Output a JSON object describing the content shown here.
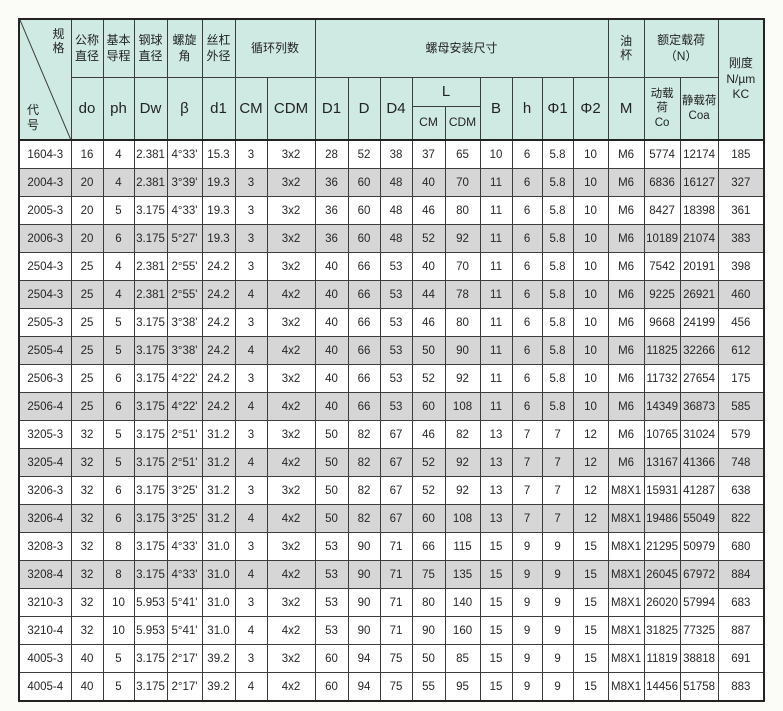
{
  "colors": {
    "header_bg": "#cfeae2",
    "shaded_row_bg": "#d6d6d6",
    "border": "#3c3c3c",
    "text": "#262626"
  },
  "header": {
    "diagonal": {
      "top": "规格",
      "bottom": "代号"
    },
    "groups": {
      "nominal_diameter": "公称\n直径",
      "basic_lead": "基本\n导程",
      "ball_diameter": "钢球\n直径",
      "helix_angle": "螺旋\n角",
      "screw_outer_diameter": "丝杠\n外径",
      "circuit_columns": "循环列数",
      "nut_mounting_dims": "螺母安装尺寸",
      "oil_cup": "油杯",
      "rated_load": "额定载荷\n（N）",
      "stiffness": "刚度\nN/µm\nKC"
    },
    "sub": {
      "do": "do",
      "ph": "ph",
      "dw": "Dw",
      "beta": "β",
      "d1": "d1",
      "cm": "CM",
      "cdm": "CDM",
      "D1": "D1",
      "D": "D",
      "D4": "D4",
      "L": "L",
      "L_cm": "CM",
      "L_cdm": "CDM",
      "B": "B",
      "h": "h",
      "phi1": "Φ1",
      "phi2": "Φ2",
      "M": "M",
      "dynamic_load": "动载荷\nCo",
      "static_load": "静载荷\nCoa"
    }
  },
  "column_keys": [
    "code",
    "do",
    "ph",
    "Dw",
    "beta",
    "d1",
    "CM",
    "CDM",
    "D1",
    "D",
    "D4",
    "L_CM",
    "L_CDM",
    "B",
    "h",
    "phi1",
    "phi2",
    "M",
    "Co",
    "Coa",
    "KC"
  ],
  "rows": [
    [
      "1604-3",
      "16",
      "4",
      "2.381",
      "4°33'",
      "15.3",
      "3",
      "3x2",
      "28",
      "52",
      "38",
      "37",
      "65",
      "10",
      "6",
      "5.8",
      "10",
      "M6",
      "5774",
      "12174",
      "185"
    ],
    [
      "2004-3",
      "20",
      "4",
      "2.381",
      "3°39'",
      "19.3",
      "3",
      "3x2",
      "36",
      "60",
      "48",
      "40",
      "70",
      "11",
      "6",
      "5.8",
      "10",
      "M6",
      "6836",
      "16127",
      "327"
    ],
    [
      "2005-3",
      "20",
      "5",
      "3.175",
      "4°33'",
      "19.3",
      "3",
      "3x2",
      "36",
      "60",
      "48",
      "46",
      "80",
      "11",
      "6",
      "5.8",
      "10",
      "M6",
      "8427",
      "18398",
      "361"
    ],
    [
      "2006-3",
      "20",
      "6",
      "3.175",
      "5°27'",
      "19.3",
      "3",
      "3x2",
      "36",
      "60",
      "48",
      "52",
      "92",
      "11",
      "6",
      "5.8",
      "10",
      "M6",
      "10189",
      "21074",
      "383"
    ],
    [
      "2504-3",
      "25",
      "4",
      "2.381",
      "2°55'",
      "24.2",
      "3",
      "3x2",
      "40",
      "66",
      "53",
      "40",
      "70",
      "11",
      "6",
      "5.8",
      "10",
      "M6",
      "7542",
      "20191",
      "398"
    ],
    [
      "2504-3",
      "25",
      "4",
      "2.381",
      "2°55'",
      "24.2",
      "4",
      "4x2",
      "40",
      "66",
      "53",
      "44",
      "78",
      "11",
      "6",
      "5.8",
      "10",
      "M6",
      "9225",
      "26921",
      "460"
    ],
    [
      "2505-3",
      "25",
      "5",
      "3.175",
      "3°38'",
      "24.2",
      "3",
      "3x2",
      "40",
      "66",
      "53",
      "46",
      "80",
      "11",
      "6",
      "5.8",
      "10",
      "M6",
      "9668",
      "24199",
      "456"
    ],
    [
      "2505-4",
      "25",
      "5",
      "3.175",
      "3°38'",
      "24.2",
      "4",
      "4x2",
      "40",
      "66",
      "53",
      "50",
      "90",
      "11",
      "6",
      "5.8",
      "10",
      "M6",
      "11825",
      "32266",
      "612"
    ],
    [
      "2506-3",
      "25",
      "6",
      "3.175",
      "4°22'",
      "24.2",
      "3",
      "3x2",
      "40",
      "66",
      "53",
      "52",
      "92",
      "11",
      "6",
      "5.8",
      "10",
      "M6",
      "11732",
      "27654",
      "175"
    ],
    [
      "2506-4",
      "25",
      "6",
      "3.175",
      "4°22'",
      "24.2",
      "4",
      "4x2",
      "40",
      "66",
      "53",
      "60",
      "108",
      "11",
      "6",
      "5.8",
      "10",
      "M6",
      "14349",
      "36873",
      "585"
    ],
    [
      "3205-3",
      "32",
      "5",
      "3.175",
      "2°51'",
      "31.2",
      "3",
      "3x2",
      "50",
      "82",
      "67",
      "46",
      "82",
      "13",
      "7",
      "7",
      "12",
      "M6",
      "10765",
      "31024",
      "579"
    ],
    [
      "3205-4",
      "32",
      "5",
      "3.175",
      "2°51'",
      "31.2",
      "4",
      "4x2",
      "50",
      "82",
      "67",
      "52",
      "92",
      "13",
      "7",
      "7",
      "12",
      "M6",
      "13167",
      "41366",
      "748"
    ],
    [
      "3206-3",
      "32",
      "6",
      "3.175",
      "3°25'",
      "31.2",
      "3",
      "3x2",
      "50",
      "82",
      "67",
      "52",
      "92",
      "13",
      "7",
      "7",
      "12",
      "M8X1",
      "15931",
      "41287",
      "638"
    ],
    [
      "3206-4",
      "32",
      "6",
      "3.175",
      "3°25'",
      "31.2",
      "4",
      "4x2",
      "50",
      "82",
      "67",
      "60",
      "108",
      "13",
      "7",
      "7",
      "12",
      "M8X1",
      "19486",
      "55049",
      "822"
    ],
    [
      "3208-3",
      "32",
      "8",
      "3.175",
      "4°33'",
      "31.0",
      "3",
      "3x2",
      "53",
      "90",
      "71",
      "66",
      "115",
      "15",
      "9",
      "9",
      "15",
      "M8X1",
      "21295",
      "50979",
      "680"
    ],
    [
      "3208-4",
      "32",
      "8",
      "3.175",
      "4°33'",
      "31.0",
      "4",
      "4x2",
      "53",
      "90",
      "71",
      "75",
      "135",
      "15",
      "9",
      "9",
      "15",
      "M8X1",
      "26045",
      "67972",
      "884"
    ],
    [
      "3210-3",
      "32",
      "10",
      "5.953",
      "5°41'",
      "31.0",
      "3",
      "3x2",
      "53",
      "90",
      "71",
      "80",
      "140",
      "15",
      "9",
      "9",
      "15",
      "M8X1",
      "26020",
      "57994",
      "683"
    ],
    [
      "3210-4",
      "32",
      "10",
      "5.953",
      "5°41'",
      "31.0",
      "4",
      "4x2",
      "53",
      "90",
      "71",
      "90",
      "160",
      "15",
      "9",
      "9",
      "15",
      "M8X1",
      "31825",
      "77325",
      "887"
    ],
    [
      "4005-3",
      "40",
      "5",
      "3.175",
      "2°17'",
      "39.2",
      "3",
      "3x2",
      "60",
      "94",
      "75",
      "50",
      "85",
      "15",
      "9",
      "9",
      "15",
      "M8X1",
      "11819",
      "38818",
      "691"
    ],
    [
      "4005-4",
      "40",
      "5",
      "3.175",
      "2°17'",
      "39.2",
      "4",
      "4x2",
      "60",
      "94",
      "75",
      "55",
      "95",
      "15",
      "9",
      "9",
      "15",
      "M8X1",
      "14456",
      "51758",
      "883"
    ]
  ],
  "shaded_row_indices": [
    1,
    3,
    5,
    7,
    9,
    11,
    13,
    15
  ]
}
